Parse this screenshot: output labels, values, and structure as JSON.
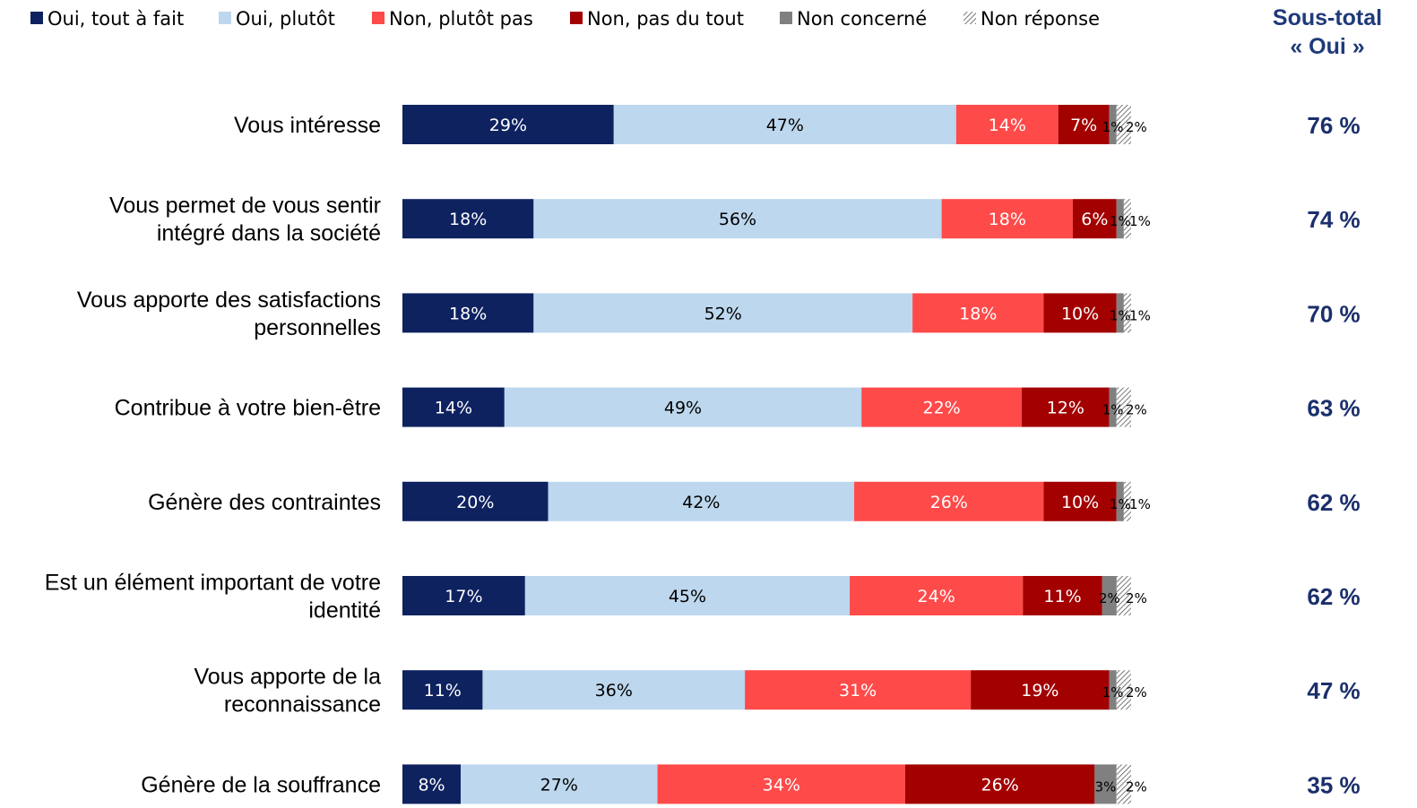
{
  "chart_data": {
    "type": "bar",
    "orientation": "horizontal",
    "stacked": true,
    "legend_position": "top",
    "xlim": [
      0,
      100
    ],
    "grid": false,
    "categories": [
      [
        "Vous intéresse"
      ],
      [
        "Vous permet de vous sentir",
        "intégré dans la société"
      ],
      [
        "Vous apporte des satisfactions",
        "personnelles"
      ],
      [
        "Contribue à votre bien-être"
      ],
      [
        "Génère des contraintes"
      ],
      [
        "Est un élément important de votre",
        "identité"
      ],
      [
        "Vous apporte de la",
        "reconnaissance"
      ],
      [
        "Génère de la souffrance"
      ]
    ],
    "series": [
      {
        "name": "Oui, tout à fait",
        "color": "#0e2260",
        "label_color": "#ffffff",
        "values": [
          29,
          18,
          18,
          14,
          20,
          17,
          11,
          8
        ]
      },
      {
        "name": "Oui, plutôt",
        "color": "#bdd7ee",
        "label_color": "#000000",
        "values": [
          47,
          56,
          52,
          49,
          42,
          45,
          36,
          27
        ]
      },
      {
        "name": "Non, plutôt pas",
        "color": "#ff4a4a",
        "label_color": "#ffffff",
        "values": [
          14,
          18,
          18,
          22,
          26,
          24,
          31,
          34
        ]
      },
      {
        "name": "Non, pas du tout",
        "color": "#a30000",
        "label_color": "#ffffff",
        "values": [
          7,
          6,
          10,
          12,
          10,
          11,
          19,
          26
        ]
      },
      {
        "name": "Non concerné",
        "color": "#808080",
        "label_color": "#000000",
        "values": [
          1,
          1,
          1,
          1,
          1,
          2,
          1,
          3
        ]
      },
      {
        "name": "Non réponse",
        "color": "hatch",
        "label_color": "#000000",
        "values": [
          2,
          1,
          1,
          2,
          1,
          2,
          2,
          2
        ]
      }
    ],
    "subtotal_title": [
      "Sous-total",
      "« Oui »"
    ],
    "subtotals": [
      "76 %",
      "74 %",
      "70 %",
      "63 %",
      "62 %",
      "62 %",
      "47 %",
      "35 %"
    ]
  }
}
